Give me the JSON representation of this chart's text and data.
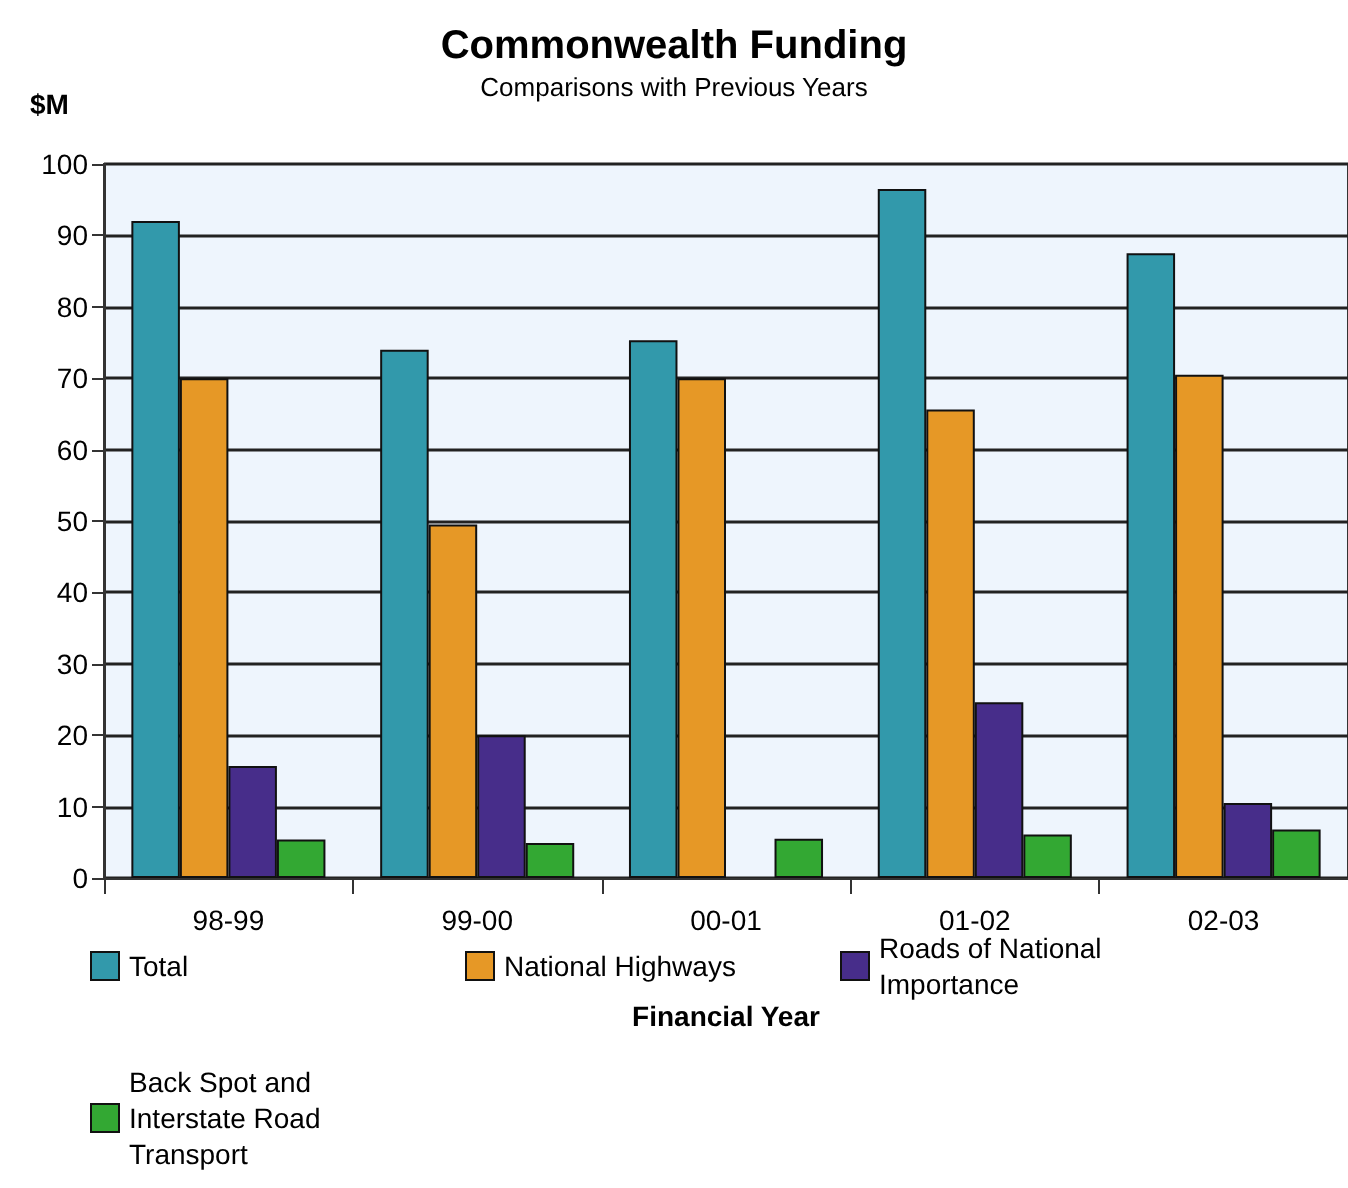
{
  "chart_data": {
    "type": "bar",
    "title": "Commonwealth Funding",
    "subtitle": "Comparisons with Previous Years",
    "xlabel": "Financial Year",
    "ylabel": "$M",
    "categories": [
      "98-99",
      "99-00",
      "00-01",
      "01-02",
      "02-03"
    ],
    "series": [
      {
        "name": "Total",
        "color": "#3299ab",
        "values": [
          92,
          74,
          75.3,
          96.5,
          87.5
        ]
      },
      {
        "name": "National Highways",
        "color": "#e69826",
        "values": [
          70,
          49.5,
          70,
          65.6,
          70.5
        ]
      },
      {
        "name": "Roads of National Importance",
        "color": "#472d8a",
        "values": [
          15.7,
          20,
          null,
          24.6,
          10.5
        ]
      },
      {
        "name": "Back Spot and Interstate Road Transport",
        "color": "#33a833",
        "values": [
          5.4,
          4.9,
          5.5,
          6.1,
          6.8
        ]
      }
    ],
    "ylim": [
      0,
      100
    ],
    "yticks": [
      0,
      10,
      20,
      30,
      40,
      50,
      60,
      70,
      80,
      90,
      100
    ],
    "grid": "y",
    "legend": "bottom"
  }
}
